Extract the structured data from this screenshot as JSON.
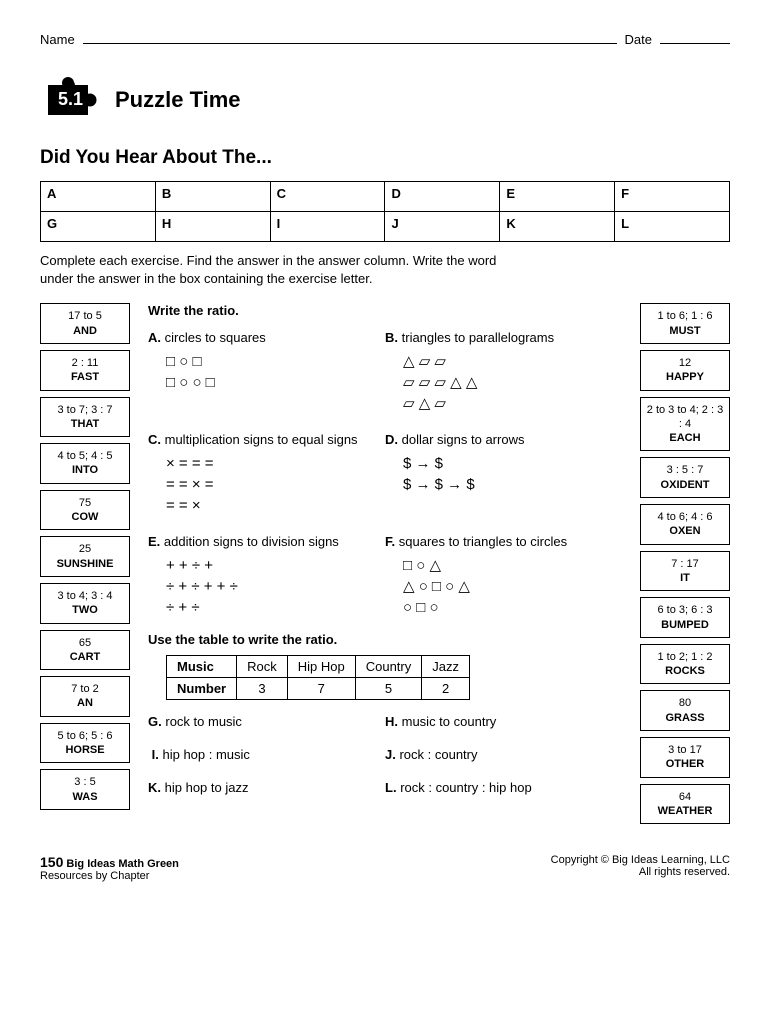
{
  "header": {
    "name_label": "Name",
    "date_label": "Date"
  },
  "chapter": "5.1",
  "main_title": "Puzzle Time",
  "sub_title": "Did You Hear About The...",
  "letter_grid": {
    "row1": [
      "A",
      "B",
      "C",
      "D",
      "E",
      "F"
    ],
    "row2": [
      "G",
      "H",
      "I",
      "J",
      "K",
      "L"
    ]
  },
  "instructions": "Complete each exercise. Find the answer in the answer column. Write the word under the answer in the box containing the exercise letter.",
  "left_answers": [
    {
      "val": "17 to 5",
      "word": "AND"
    },
    {
      "val": "2 : 11",
      "word": "FAST"
    },
    {
      "val": "3 to 7; 3 : 7",
      "word": "THAT"
    },
    {
      "val": "4 to 5; 4 : 5",
      "word": "INTO"
    },
    {
      "val": "75",
      "word": "COW"
    },
    {
      "val": "25",
      "word": "SUNSHINE"
    },
    {
      "val": "3 to 4; 3 : 4",
      "word": "TWO"
    },
    {
      "val": "65",
      "word": "CART"
    },
    {
      "val": "7 to 2",
      "word": "AN"
    },
    {
      "val": "5 to 6; 5 : 6",
      "word": "HORSE"
    },
    {
      "val": "3 : 5",
      "word": "WAS"
    }
  ],
  "right_answers": [
    {
      "val": "1 to 6; 1 : 6",
      "word": "MUST"
    },
    {
      "val": "12",
      "word": "HAPPY"
    },
    {
      "val": "2 to 3 to 4; 2 : 3 : 4",
      "word": "EACH"
    },
    {
      "val": "3 : 5 : 7",
      "word": "OXIDENT"
    },
    {
      "val": "4 to 6; 4 : 6",
      "word": "OXEN"
    },
    {
      "val": "7 : 17",
      "word": "IT"
    },
    {
      "val": "6 to 3; 6 : 3",
      "word": "BUMPED"
    },
    {
      "val": "1 to 2; 1 : 2",
      "word": "ROCKS"
    },
    {
      "val": "80",
      "word": "GRASS"
    },
    {
      "val": "3 to 17",
      "word": "OTHER"
    },
    {
      "val": "64",
      "word": "WEATHER"
    }
  ],
  "section1_head": "Write the ratio.",
  "exA": {
    "letter": "A.",
    "text": "circles to squares"
  },
  "exB": {
    "letter": "B.",
    "text": "triangles to parallelograms"
  },
  "exC": {
    "letter": "C.",
    "text": "multiplication signs to equal signs"
  },
  "exD": {
    "letter": "D.",
    "text": "dollar signs to arrows"
  },
  "exE": {
    "letter": "E.",
    "text": "addition signs to division signs"
  },
  "exF": {
    "letter": "F.",
    "text": "squares to triangles to circles"
  },
  "section2_head": "Use the table to write the ratio.",
  "music_table": {
    "head_label": "Music",
    "cols": [
      "Rock",
      "Hip Hop",
      "Country",
      "Jazz"
    ],
    "row_label": "Number",
    "vals": [
      "3",
      "7",
      "5",
      "2"
    ]
  },
  "exG": {
    "letter": "G.",
    "text": "rock to music"
  },
  "exH": {
    "letter": "H.",
    "text": "music to country"
  },
  "exI": {
    "letter": "I.",
    "text": "hip hop : music"
  },
  "exJ": {
    "letter": "J.",
    "text": "rock : country"
  },
  "exK": {
    "letter": "K.",
    "text": "hip hop to jazz"
  },
  "exL": {
    "letter": "L.",
    "text": "rock : country : hip hop"
  },
  "footer": {
    "page": "150",
    "book": "Big Ideas Math Green",
    "sub": "Resources by Chapter",
    "copy": "Copyright © Big Ideas Learning, LLC",
    "rights": "All rights reserved."
  },
  "shapes": {
    "A": "□ ○ □<br>□ ○ ○ □",
    "B": "△ ▱ ▱<br>▱ ▱ ▱ △ △<br>▱ △ ▱",
    "C": "× = = =<br>= = × =<br>= = ×",
    "D": "$ → $<br>$ → $ → $",
    "E": "+ + ÷ +<br>÷ + ÷ + + ÷<br>÷ + ÷",
    "F": "□ ○ △<br>△ ○ □ ○ △<br>○ □ ○"
  }
}
